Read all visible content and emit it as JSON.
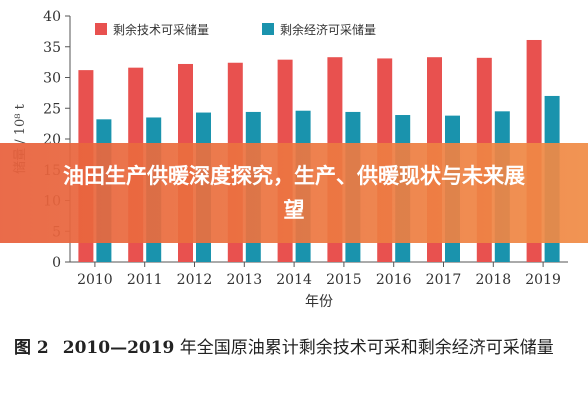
{
  "overlay": {
    "title": "油田生产供暖深度探究，生产、供暖现状与未来展望"
  },
  "caption": {
    "figure_label": "图 2",
    "year_range": "2010—2019",
    "text": " 年全国原油累计剩余技术可采和剩余经济可采储量"
  },
  "colors": {
    "technical": "#e8514f",
    "economic": "#1a93ad",
    "axis": "#555555"
  },
  "chart_data": {
    "type": "bar",
    "title": "",
    "xlabel": "年份",
    "ylabel": "储量 / 10⁸ t",
    "categories": [
      "2010",
      "2011",
      "2012",
      "2013",
      "2014",
      "2015",
      "2016",
      "2017",
      "2018",
      "2019"
    ],
    "series": [
      {
        "name": "剩余技术可采储量",
        "values": [
          31.2,
          31.6,
          32.2,
          32.4,
          32.9,
          33.3,
          33.1,
          33.3,
          33.2,
          36.1
        ]
      },
      {
        "name": "剩余经济可采储量",
        "values": [
          23.2,
          23.5,
          24.3,
          24.4,
          24.6,
          24.4,
          23.9,
          23.8,
          24.5,
          27.0
        ]
      }
    ],
    "ylim": [
      0,
      40
    ],
    "yticks": [
      0,
      5,
      10,
      15,
      20,
      25,
      30,
      35,
      40
    ],
    "legend_position": "top"
  }
}
